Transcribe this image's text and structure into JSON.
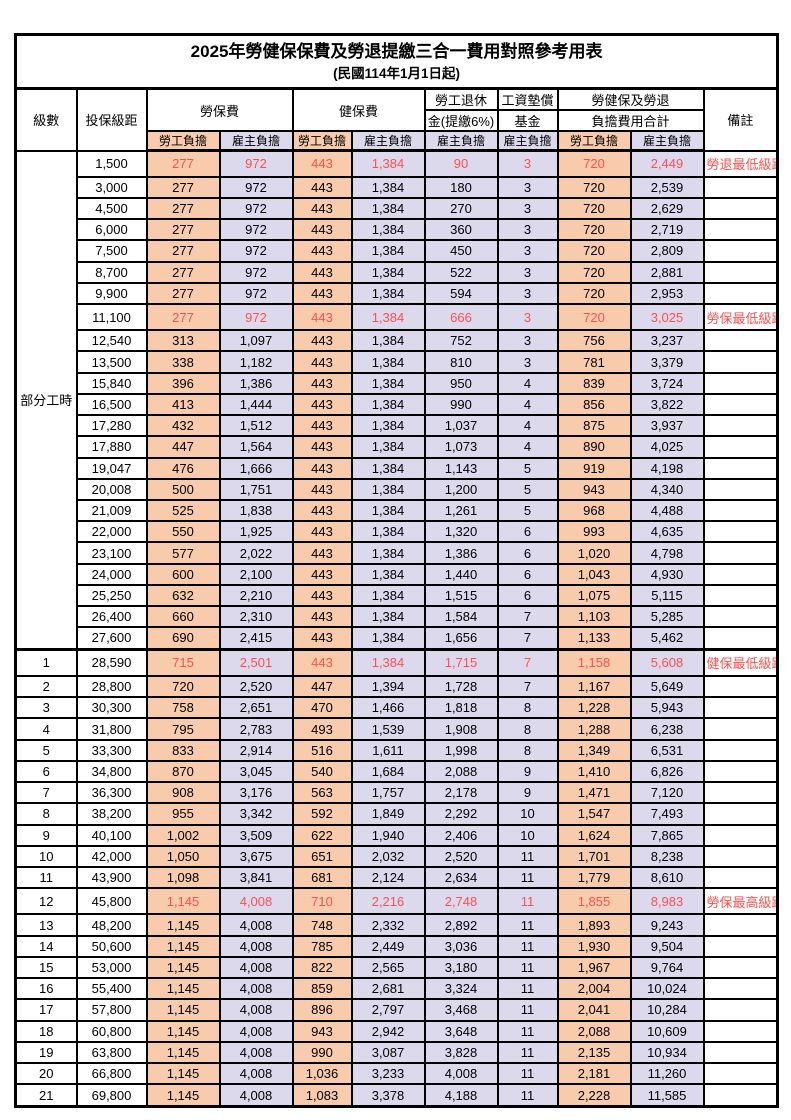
{
  "title": "2025年勞健保保費及勞退提繳三合一費用對照參考用表",
  "subtitle": "(民國114年1月1日起)",
  "colors": {
    "employee_fill": "#F8CBAD",
    "employer_fill": "#DCD9ED",
    "highlight_text": "#FF5050",
    "border": "#000000"
  },
  "table": {
    "header": {
      "level": "級數",
      "bracket": "投保級距",
      "labor_insurance": "勞保費",
      "health_insurance": "健保費",
      "pension_line1": "勞工退休",
      "pension_line2": "金(提繳6%)",
      "wage_fund_line1": "工資墊償",
      "wage_fund_line2": "基金",
      "total_line1": "勞健保及勞退",
      "total_line2": "負擔費用合計",
      "remark": "備註",
      "employee_share": "勞工負擔",
      "employer_share": "雇主負擔"
    },
    "part_time_label": "部分工時",
    "part_time_span": 23,
    "value_column_types": [
      "emp",
      "er",
      "emp",
      "er",
      "er",
      "er",
      "emp",
      "er"
    ],
    "rows": [
      {
        "level": "",
        "bracket": "1,500",
        "values": [
          "277",
          "972",
          "443",
          "1,384",
          "90",
          "3",
          "720",
          "2,449"
        ],
        "remark": "勞退最低級距",
        "highlight": true,
        "bold": false
      },
      {
        "level": "",
        "bracket": "3,000",
        "values": [
          "277",
          "972",
          "443",
          "1,384",
          "180",
          "3",
          "720",
          "2,539"
        ],
        "remark": "",
        "highlight": false,
        "bold": false
      },
      {
        "level": "",
        "bracket": "4,500",
        "values": [
          "277",
          "972",
          "443",
          "1,384",
          "270",
          "3",
          "720",
          "2,629"
        ],
        "remark": "",
        "highlight": false,
        "bold": false
      },
      {
        "level": "",
        "bracket": "6,000",
        "values": [
          "277",
          "972",
          "443",
          "1,384",
          "360",
          "3",
          "720",
          "2,719"
        ],
        "remark": "",
        "highlight": false,
        "bold": false
      },
      {
        "level": "",
        "bracket": "7,500",
        "values": [
          "277",
          "972",
          "443",
          "1,384",
          "450",
          "3",
          "720",
          "2,809"
        ],
        "remark": "",
        "highlight": false,
        "bold": false
      },
      {
        "level": "",
        "bracket": "8,700",
        "values": [
          "277",
          "972",
          "443",
          "1,384",
          "522",
          "3",
          "720",
          "2,881"
        ],
        "remark": "",
        "highlight": false,
        "bold": false
      },
      {
        "level": "",
        "bracket": "9,900",
        "values": [
          "277",
          "972",
          "443",
          "1,384",
          "594",
          "3",
          "720",
          "2,953"
        ],
        "remark": "",
        "highlight": false,
        "bold": false
      },
      {
        "level": "",
        "bracket": "11,100",
        "values": [
          "277",
          "972",
          "443",
          "1,384",
          "666",
          "3",
          "720",
          "3,025"
        ],
        "remark": "勞保最低級距",
        "highlight": true,
        "bold": false
      },
      {
        "level": "",
        "bracket": "12,540",
        "values": [
          "313",
          "1,097",
          "443",
          "1,384",
          "752",
          "3",
          "756",
          "3,237"
        ],
        "remark": "",
        "highlight": false,
        "bold": false
      },
      {
        "level": "",
        "bracket": "13,500",
        "values": [
          "338",
          "1,182",
          "443",
          "1,384",
          "810",
          "3",
          "781",
          "3,379"
        ],
        "remark": "",
        "highlight": false,
        "bold": false
      },
      {
        "level": "",
        "bracket": "15,840",
        "values": [
          "396",
          "1,386",
          "443",
          "1,384",
          "950",
          "4",
          "839",
          "3,724"
        ],
        "remark": "",
        "highlight": false,
        "bold": false
      },
      {
        "level": "",
        "bracket": "16,500",
        "values": [
          "413",
          "1,444",
          "443",
          "1,384",
          "990",
          "4",
          "856",
          "3,822"
        ],
        "remark": "",
        "highlight": false,
        "bold": false
      },
      {
        "level": "",
        "bracket": "17,280",
        "values": [
          "432",
          "1,512",
          "443",
          "1,384",
          "1,037",
          "4",
          "875",
          "3,937"
        ],
        "remark": "",
        "highlight": false,
        "bold": false
      },
      {
        "level": "",
        "bracket": "17,880",
        "values": [
          "447",
          "1,564",
          "443",
          "1,384",
          "1,073",
          "4",
          "890",
          "4,025"
        ],
        "remark": "",
        "highlight": false,
        "bold": false
      },
      {
        "level": "",
        "bracket": "19,047",
        "values": [
          "476",
          "1,666",
          "443",
          "1,384",
          "1,143",
          "5",
          "919",
          "4,198"
        ],
        "remark": "",
        "highlight": false,
        "bold": false
      },
      {
        "level": "",
        "bracket": "20,008",
        "values": [
          "500",
          "1,751",
          "443",
          "1,384",
          "1,200",
          "5",
          "943",
          "4,340"
        ],
        "remark": "",
        "highlight": false,
        "bold": false
      },
      {
        "level": "",
        "bracket": "21,009",
        "values": [
          "525",
          "1,838",
          "443",
          "1,384",
          "1,261",
          "5",
          "968",
          "4,488"
        ],
        "remark": "",
        "highlight": false,
        "bold": false
      },
      {
        "level": "",
        "bracket": "22,000",
        "values": [
          "550",
          "1,925",
          "443",
          "1,384",
          "1,320",
          "6",
          "993",
          "4,635"
        ],
        "remark": "",
        "highlight": false,
        "bold": false
      },
      {
        "level": "",
        "bracket": "23,100",
        "values": [
          "577",
          "2,022",
          "443",
          "1,384",
          "1,386",
          "6",
          "1,020",
          "4,798"
        ],
        "remark": "",
        "highlight": false,
        "bold": false
      },
      {
        "level": "",
        "bracket": "24,000",
        "values": [
          "600",
          "2,100",
          "443",
          "1,384",
          "1,440",
          "6",
          "1,043",
          "4,930"
        ],
        "remark": "",
        "highlight": false,
        "bold": false
      },
      {
        "level": "",
        "bracket": "25,250",
        "values": [
          "632",
          "2,210",
          "443",
          "1,384",
          "1,515",
          "6",
          "1,075",
          "5,115"
        ],
        "remark": "",
        "highlight": false,
        "bold": false
      },
      {
        "level": "",
        "bracket": "26,400",
        "values": [
          "660",
          "2,310",
          "443",
          "1,384",
          "1,584",
          "7",
          "1,103",
          "5,285"
        ],
        "remark": "",
        "highlight": false,
        "bold": false
      },
      {
        "level": "",
        "bracket": "27,600",
        "values": [
          "690",
          "2,415",
          "443",
          "1,384",
          "1,656",
          "7",
          "1,133",
          "5,462"
        ],
        "remark": "",
        "highlight": false,
        "bold": false
      },
      {
        "level": "1",
        "bracket": "28,590",
        "values": [
          "715",
          "2,501",
          "443",
          "1,384",
          "1,715",
          "7",
          "1,158",
          "5,608"
        ],
        "remark": "健保最低級距",
        "highlight": true,
        "bold": true
      },
      {
        "level": "2",
        "bracket": "28,800",
        "values": [
          "720",
          "2,520",
          "447",
          "1,394",
          "1,728",
          "7",
          "1,167",
          "5,649"
        ],
        "remark": "",
        "highlight": false,
        "bold": false
      },
      {
        "level": "3",
        "bracket": "30,300",
        "values": [
          "758",
          "2,651",
          "470",
          "1,466",
          "1,818",
          "8",
          "1,228",
          "5,943"
        ],
        "remark": "",
        "highlight": false,
        "bold": false
      },
      {
        "level": "4",
        "bracket": "31,800",
        "values": [
          "795",
          "2,783",
          "493",
          "1,539",
          "1,908",
          "8",
          "1,288",
          "6,238"
        ],
        "remark": "",
        "highlight": false,
        "bold": false
      },
      {
        "level": "5",
        "bracket": "33,300",
        "values": [
          "833",
          "2,914",
          "516",
          "1,611",
          "1,998",
          "8",
          "1,349",
          "6,531"
        ],
        "remark": "",
        "highlight": false,
        "bold": false
      },
      {
        "level": "6",
        "bracket": "34,800",
        "values": [
          "870",
          "3,045",
          "540",
          "1,684",
          "2,088",
          "9",
          "1,410",
          "6,826"
        ],
        "remark": "",
        "highlight": false,
        "bold": false
      },
      {
        "level": "7",
        "bracket": "36,300",
        "values": [
          "908",
          "3,176",
          "563",
          "1,757",
          "2,178",
          "9",
          "1,471",
          "7,120"
        ],
        "remark": "",
        "highlight": false,
        "bold": false
      },
      {
        "level": "8",
        "bracket": "38,200",
        "values": [
          "955",
          "3,342",
          "592",
          "1,849",
          "2,292",
          "10",
          "1,547",
          "7,493"
        ],
        "remark": "",
        "highlight": false,
        "bold": false
      },
      {
        "level": "9",
        "bracket": "40,100",
        "values": [
          "1,002",
          "3,509",
          "622",
          "1,940",
          "2,406",
          "10",
          "1,624",
          "7,865"
        ],
        "remark": "",
        "highlight": false,
        "bold": false
      },
      {
        "level": "10",
        "bracket": "42,000",
        "values": [
          "1,050",
          "3,675",
          "651",
          "2,032",
          "2,520",
          "11",
          "1,701",
          "8,238"
        ],
        "remark": "",
        "highlight": false,
        "bold": false
      },
      {
        "level": "11",
        "bracket": "43,900",
        "values": [
          "1,098",
          "3,841",
          "681",
          "2,124",
          "2,634",
          "11",
          "1,779",
          "8,610"
        ],
        "remark": "",
        "highlight": false,
        "bold": false
      },
      {
        "level": "12",
        "bracket": "45,800",
        "values": [
          "1,145",
          "4,008",
          "710",
          "2,216",
          "2,748",
          "11",
          "1,855",
          "8,983"
        ],
        "remark": "勞保最高級距",
        "highlight": true,
        "bold": true
      },
      {
        "level": "13",
        "bracket": "48,200",
        "values": [
          "1,145",
          "4,008",
          "748",
          "2,332",
          "2,892",
          "11",
          "1,893",
          "9,243"
        ],
        "remark": "",
        "highlight": false,
        "bold": false
      },
      {
        "level": "14",
        "bracket": "50,600",
        "values": [
          "1,145",
          "4,008",
          "785",
          "2,449",
          "3,036",
          "11",
          "1,930",
          "9,504"
        ],
        "remark": "",
        "highlight": false,
        "bold": false
      },
      {
        "level": "15",
        "bracket": "53,000",
        "values": [
          "1,145",
          "4,008",
          "822",
          "2,565",
          "3,180",
          "11",
          "1,967",
          "9,764"
        ],
        "remark": "",
        "highlight": false,
        "bold": false
      },
      {
        "level": "16",
        "bracket": "55,400",
        "values": [
          "1,145",
          "4,008",
          "859",
          "2,681",
          "3,324",
          "11",
          "2,004",
          "10,024"
        ],
        "remark": "",
        "highlight": false,
        "bold": false
      },
      {
        "level": "17",
        "bracket": "57,800",
        "values": [
          "1,145",
          "4,008",
          "896",
          "2,797",
          "3,468",
          "11",
          "2,041",
          "10,284"
        ],
        "remark": "",
        "highlight": false,
        "bold": false
      },
      {
        "level": "18",
        "bracket": "60,800",
        "values": [
          "1,145",
          "4,008",
          "943",
          "2,942",
          "3,648",
          "11",
          "2,088",
          "10,609"
        ],
        "remark": "",
        "highlight": false,
        "bold": false
      },
      {
        "level": "19",
        "bracket": "63,800",
        "values": [
          "1,145",
          "4,008",
          "990",
          "3,087",
          "3,828",
          "11",
          "2,135",
          "10,934"
        ],
        "remark": "",
        "highlight": false,
        "bold": false
      },
      {
        "level": "20",
        "bracket": "66,800",
        "values": [
          "1,145",
          "4,008",
          "1,036",
          "3,233",
          "4,008",
          "11",
          "2,181",
          "11,260"
        ],
        "remark": "",
        "highlight": false,
        "bold": false
      },
      {
        "level": "21",
        "bracket": "69,800",
        "values": [
          "1,145",
          "4,008",
          "1,083",
          "3,378",
          "4,188",
          "11",
          "2,228",
          "11,585"
        ],
        "remark": "",
        "highlight": false,
        "bold": false
      }
    ]
  }
}
